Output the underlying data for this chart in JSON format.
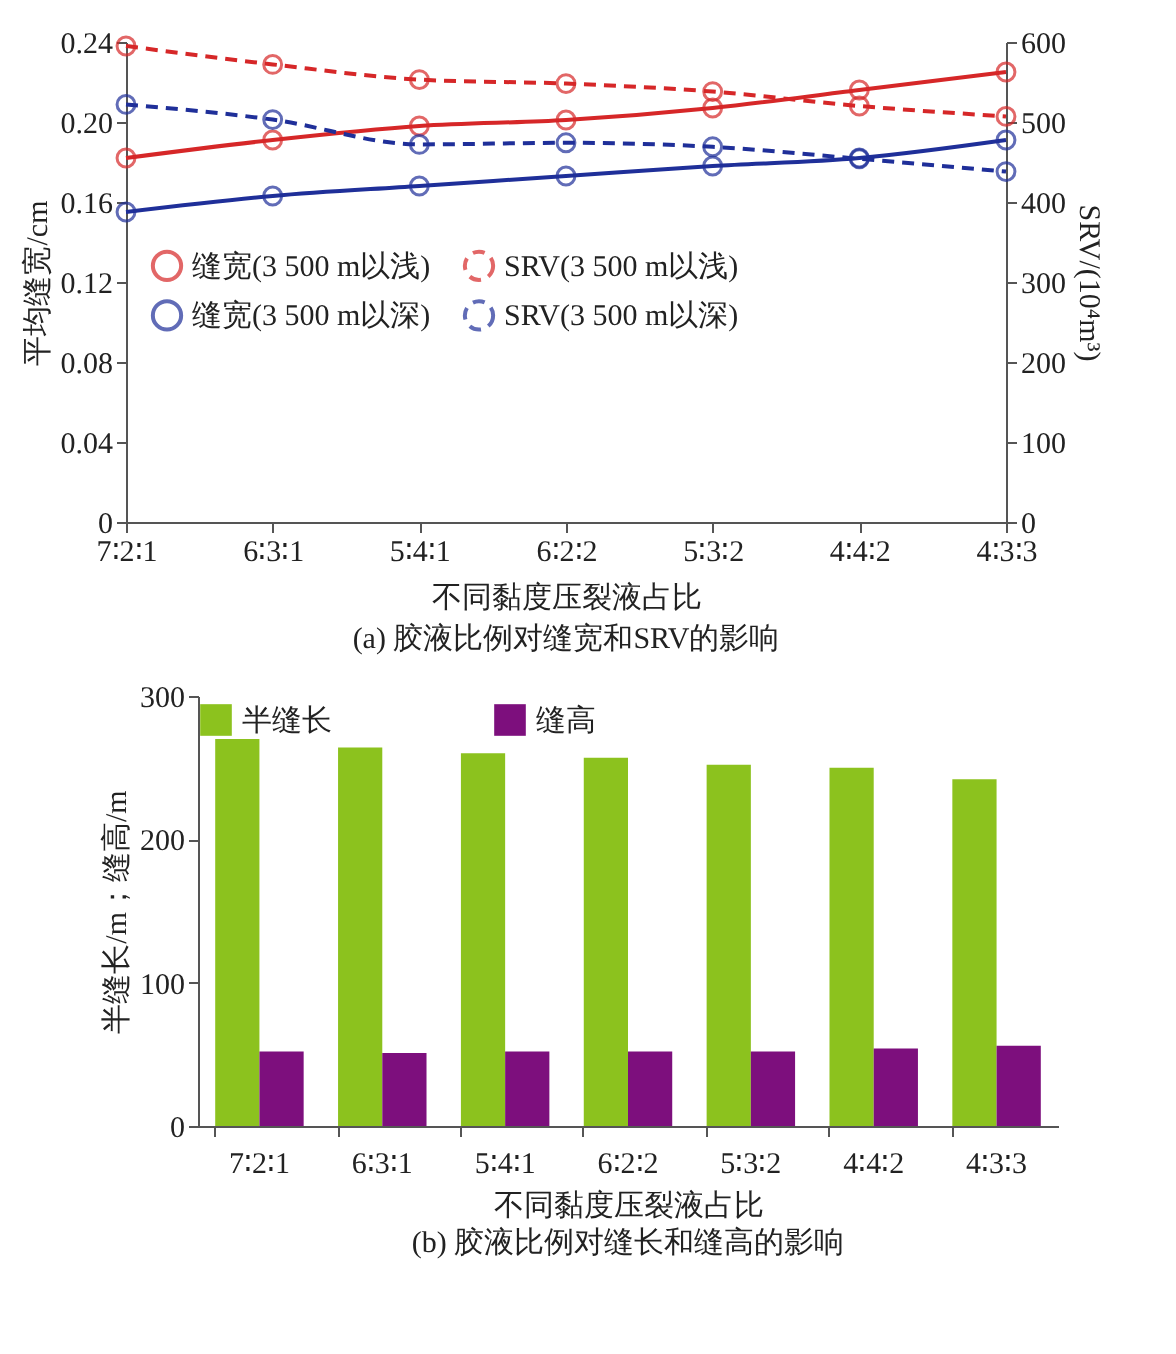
{
  "chart_data": [
    {
      "type": "line",
      "title": "(a) 胶液比例对缝宽和SRV的影响",
      "xlabel": "不同黏度压裂液占比",
      "ylabel": "平均缝宽/cm",
      "y2label": "SRV/(10⁴m³)",
      "categories": [
        "7∶2∶1",
        "6∶3∶1",
        "5∶4∶1",
        "6∶2∶2",
        "5∶3∶2",
        "4∶4∶2",
        "4∶3∶3"
      ],
      "series": [
        {
          "name": "缝宽(3 500 m以浅)",
          "color": "#d62728",
          "line_style": "solid",
          "values": [
            0.182,
            0.191,
            0.198,
            0.201,
            0.207,
            0.216,
            0.225
          ]
        },
        {
          "name": "缝宽(3 500 m以深)",
          "color": "#1f2f99",
          "line_style": "solid",
          "values": [
            0.155,
            0.163,
            0.168,
            0.173,
            0.178,
            0.182,
            0.191
          ]
        },
        {
          "name": "SRV(3 500 m以浅)",
          "color": "#d62728",
          "line_style": "dashed",
          "axis": "y2",
          "values": [
            595,
            572,
            553,
            548,
            538,
            520,
            507
          ]
        },
        {
          "name": "SRV(3 500 m以深)",
          "color": "#1f2f99",
          "line_style": "dashed",
          "axis": "y2",
          "values": [
            522,
            503,
            472,
            474,
            469,
            454,
            438
          ]
        }
      ],
      "ylim": [
        0,
        0.24
      ],
      "yticks": [
        {
          "value": 0,
          "label": "0"
        },
        0.04,
        0.08,
        0.12,
        0.16,
        {
          "value": 0.2,
          "label": "0.20"
        },
        0.24
      ],
      "y2lim": [
        0,
        600
      ],
      "y2ticks": [
        0,
        100,
        200,
        300,
        400,
        500,
        600
      ],
      "marker": "circle",
      "legend": "left",
      "grid": false
    },
    {
      "type": "bar",
      "title": "(b) 胶液比例对缝长和缝高的影响",
      "xlabel": "不同黏度压裂液占比",
      "ylabel": "半缝长/m；缝高/m",
      "categories": [
        "7∶2∶1",
        "6∶3∶1",
        "5∶4∶1",
        "6∶2∶2",
        "5∶3∶2",
        "4∶4∶2",
        "4∶3∶3"
      ],
      "series": [
        {
          "name": "半缝长",
          "color": "#8cc21e",
          "values": [
            270,
            264,
            260,
            257,
            252,
            250,
            242
          ]
        },
        {
          "name": "缝高",
          "color": "#7d0f7d",
          "values": [
            52,
            51,
            52,
            52,
            52,
            54,
            56
          ]
        }
      ],
      "ylim": [
        0,
        300
      ],
      "yticks": [
        0,
        100,
        200,
        300
      ],
      "legend": "top",
      "grid": false
    }
  ]
}
